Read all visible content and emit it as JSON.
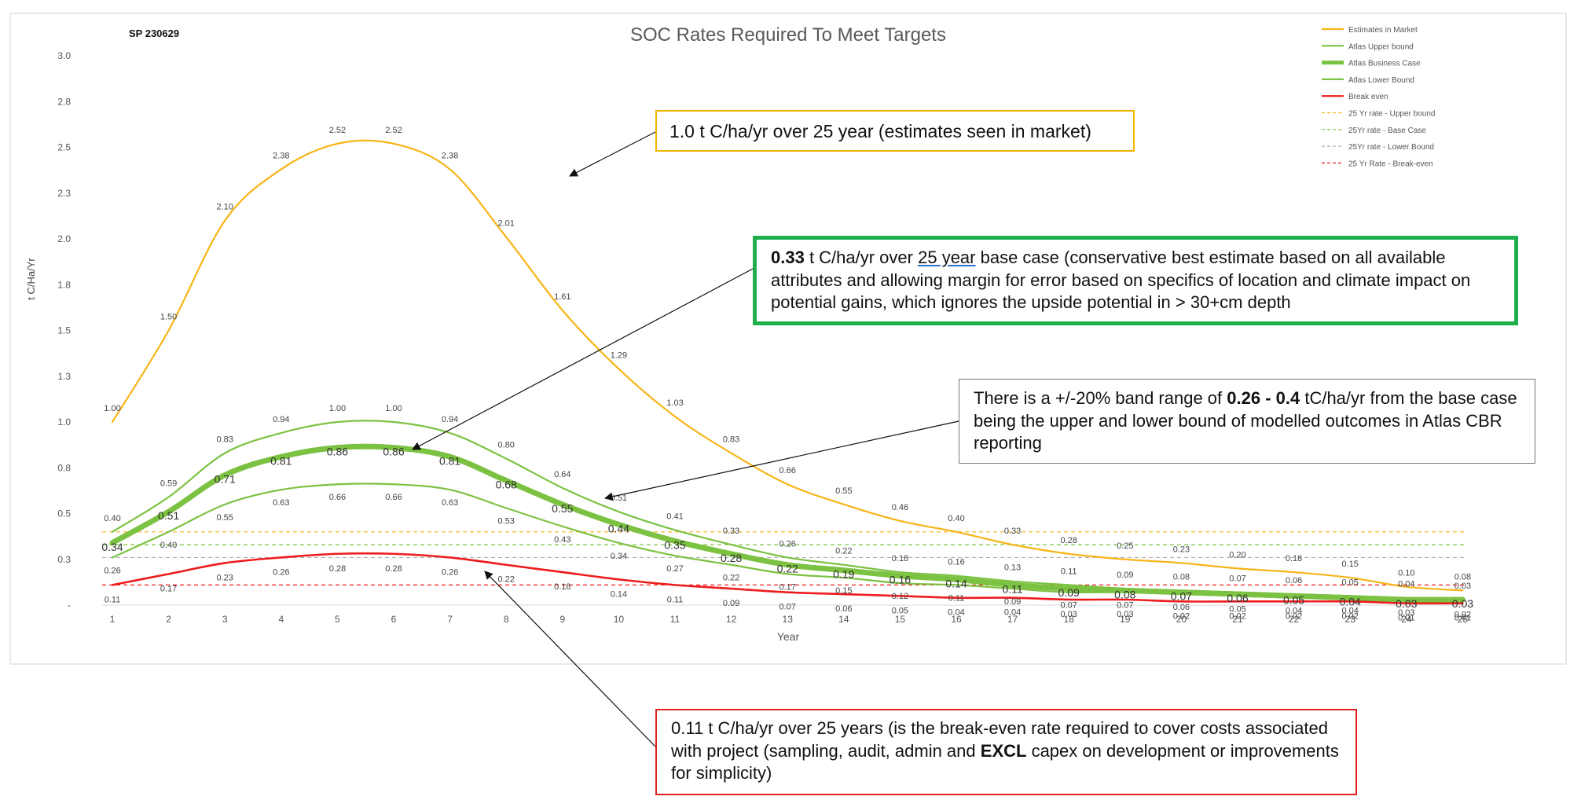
{
  "chart_data": {
    "type": "line",
    "title": "SOC Rates Required To Meet Targets",
    "subtitle": "SP 230629",
    "xlabel": "Year",
    "ylabel": "t C/Ha/Yr",
    "x": [
      1,
      2,
      3,
      4,
      5,
      6,
      7,
      8,
      9,
      10,
      11,
      12,
      13,
      14,
      15,
      16,
      17,
      18,
      19,
      20,
      21,
      22,
      23,
      24,
      25
    ],
    "ylim": [
      0,
      3.0
    ],
    "y_tick_labels": [
      "-",
      "0.3",
      "0.5",
      "0.8",
      "1.0",
      "1.3",
      "1.5",
      "1.8",
      "2.0",
      "2.3",
      "2.5",
      "2.8",
      "3.0"
    ],
    "series": [
      {
        "name": "Estimates in Market",
        "color": "#f7b416",
        "style": "solid",
        "values": [
          1.0,
          1.5,
          2.1,
          2.38,
          2.52,
          2.52,
          2.38,
          2.01,
          1.61,
          1.29,
          1.03,
          0.83,
          0.66,
          0.55,
          0.46,
          0.4,
          0.33,
          0.28,
          0.25,
          0.23,
          0.2,
          0.18,
          0.15,
          0.1,
          0.08
        ],
        "labels": [
          "1.00",
          "1.50",
          "2.10",
          "2.38",
          "2.52",
          "2.52",
          "2.38",
          "2.01",
          "1.61",
          "1.29",
          "1.03",
          "0.83",
          "0.66",
          "0.55",
          "0.46",
          "0.40",
          "0.33",
          "0.28",
          "0.25",
          "0.23",
          "0.20",
          "0.18",
          "0.15",
          "0.10",
          "0.08"
        ]
      },
      {
        "name": "Atlas Upper bound",
        "color": "#7cc242",
        "style": "solid",
        "values": [
          0.4,
          0.59,
          0.83,
          0.94,
          1.0,
          1.0,
          0.94,
          0.8,
          0.64,
          0.51,
          0.41,
          0.33,
          0.26,
          0.22,
          0.18,
          0.16,
          0.13,
          0.11,
          0.09,
          0.08,
          0.07,
          0.06,
          0.05,
          0.04,
          0.03
        ],
        "labels": [
          "0.40",
          "0.59",
          "0.83",
          "0.94",
          "1.00",
          "1.00",
          "0.94",
          "0.80",
          "0.64",
          "0.51",
          "0.41",
          "0.33",
          "0.26",
          "0.22",
          "0.18",
          "0.16",
          "0.13",
          "0.11",
          "0.09",
          "0.08",
          "0.07",
          "0.06",
          "0.05",
          "0.04",
          "0.03"
        ]
      },
      {
        "name": "Atlas Business Case",
        "color": "#7cc242",
        "style": "thick",
        "values": [
          0.34,
          0.51,
          0.71,
          0.81,
          0.86,
          0.86,
          0.81,
          0.68,
          0.55,
          0.44,
          0.35,
          0.28,
          0.22,
          0.19,
          0.16,
          0.14,
          0.11,
          0.09,
          0.08,
          0.07,
          0.06,
          0.05,
          0.04,
          0.03,
          0.03
        ],
        "labels": [
          "0.34",
          "0.51",
          "0.71",
          "0.81",
          "0.86",
          "0.86",
          "0.81",
          "0.68",
          "0.55",
          "0.44",
          "0.35",
          "0.28",
          "0.22",
          "0.19",
          "0.16",
          "0.14",
          "0.11",
          "0.09",
          "0.08",
          "0.07",
          "0.06",
          "0.05",
          "0.04",
          "0.03",
          "0.03"
        ]
      },
      {
        "name": "Atlas Lower Bound",
        "color": "#7cc242",
        "style": "solid",
        "values": [
          0.26,
          0.4,
          0.55,
          0.63,
          0.66,
          0.66,
          0.63,
          0.53,
          0.43,
          0.34,
          0.27,
          0.22,
          0.17,
          0.15,
          0.12,
          0.11,
          0.09,
          0.07,
          0.07,
          0.06,
          0.05,
          0.04,
          0.04,
          0.03,
          0.02
        ],
        "labels": [
          "0.26",
          "0.40",
          "0.55",
          "0.63",
          "0.66",
          "0.66",
          "0.63",
          "0.53",
          "0.43",
          "0.34",
          "0.27",
          "0.22",
          "0.17",
          "0.15",
          "0.12",
          "0.11",
          "0.09",
          "0.07",
          "0.07",
          "0.06",
          "0.05",
          "0.04",
          "0.04",
          "0.03",
          "0.02"
        ]
      },
      {
        "name": "Break even",
        "color": "#ee1c1c",
        "style": "solid",
        "values": [
          0.11,
          0.17,
          0.23,
          0.26,
          0.28,
          0.28,
          0.26,
          0.22,
          0.18,
          0.14,
          0.11,
          0.09,
          0.07,
          0.06,
          0.05,
          0.04,
          0.04,
          0.03,
          0.03,
          0.02,
          0.02,
          0.02,
          0.02,
          0.01,
          0.01
        ],
        "labels": [
          "0.11",
          "0.17",
          "0.23",
          "0.26",
          "0.28",
          "0.28",
          "0.26",
          "0.22",
          "0.18",
          "0.14",
          "0.11",
          "0.09",
          "0.07",
          "0.06",
          "0.05",
          "0.04",
          "0.04",
          "0.03",
          "0.03",
          "0.02",
          "0.02",
          "0.02",
          "0.02",
          "0.01",
          "0.01"
        ]
      }
    ],
    "reference_lines": [
      {
        "name": "25 Yr rate - Upper bound",
        "color": "#f7b416",
        "value": 0.4
      },
      {
        "name": "25Yr rate - Base Case",
        "color": "#7cc242",
        "value": 0.33
      },
      {
        "name": "25Yr rate - Lower Bound",
        "color": "#b0b0b0",
        "value": 0.26
      },
      {
        "name": "25 Yr Rate - Break-even",
        "color": "#ee1c1c",
        "value": 0.11
      }
    ],
    "legend": {
      "position": "top-right",
      "entries": [
        {
          "label": "Estimates in Market",
          "color": "#f7b416",
          "style": "solid"
        },
        {
          "label": "Atlas Upper bound",
          "color": "#7cc242",
          "style": "solid"
        },
        {
          "label": "Atlas Business Case",
          "color": "#7cc242",
          "style": "thick"
        },
        {
          "label": "Atlas Lower Bound",
          "color": "#7cc242",
          "style": "solid"
        },
        {
          "label": "Break even",
          "color": "#ee1c1c",
          "style": "solid"
        },
        {
          "label": "25 Yr rate - Upper bound",
          "color": "#f7b416",
          "style": "dashed"
        },
        {
          "label": "25Yr rate - Base Case",
          "color": "#7cc242",
          "style": "dashed"
        },
        {
          "label": "25Yr rate - Lower Bound",
          "color": "#b0b0b0",
          "style": "dashed"
        },
        {
          "label": "25 Yr Rate - Break-even",
          "color": "#ee1c1c",
          "style": "dashed"
        }
      ]
    }
  },
  "callouts": {
    "market": {
      "text": "1.0 t C/ha/yr over 25 year (estimates seen in market)",
      "border_color": "#f2b400"
    },
    "base": {
      "bold_value": "0.33",
      "text_a": " t C/ha/yr over ",
      "underlined": "25 year",
      "text_b": " base case (conservative best estimate based on all available attributes and allowing margin for error based on specifics of location and climate impact on potential gains, which ignores the upside potential in > 30+cm depth",
      "border_color": "#1fae4b"
    },
    "band": {
      "text_a": "There is a +/-20% band range of ",
      "bold_range": "0.26 - 0.4",
      "text_b": " tC/ha/yr from the base case being the upper and lower bound of modelled outcomes in Atlas CBR reporting",
      "border_color": "#777777"
    },
    "break_even": {
      "text_a": "0.11 t C/ha/yr over 25 years (is the break-even rate required to cover costs associated with project (sampling, audit, admin and ",
      "bold_word": "EXCL",
      "text_b": " capex on development or improvements for simplicity)",
      "border_color": "#e02020"
    }
  }
}
